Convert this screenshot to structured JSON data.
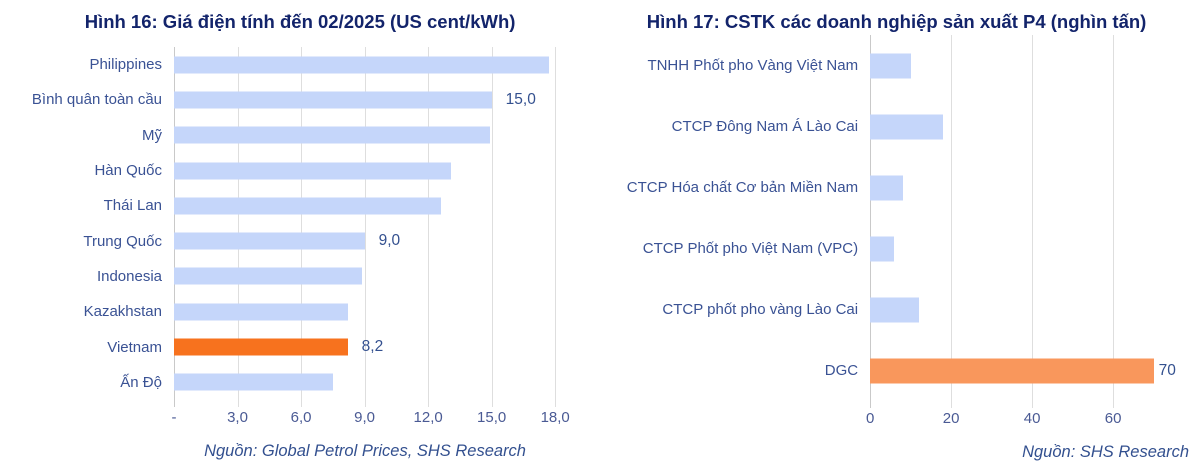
{
  "page": {
    "background": "#FFFFFF"
  },
  "colors": {
    "title_navy": "#13246B",
    "category_label": "#3A5294",
    "tick_label": "#4A5A94",
    "data_label": "#33508F",
    "source_text": "#33508F",
    "gridline": "#DEDEDE",
    "bar_blue": "#C5D6FA",
    "bar_orange_strong": "#F7721E",
    "bar_orange_light": "#F9975C"
  },
  "chart_data": [
    {
      "id": "fig16",
      "type": "bar",
      "orientation": "horizontal",
      "title": "Hình 16: Giá điện tính đến 02/2025 (US cent/kWh)",
      "categories": [
        "Philippines",
        "Bình quân toàn cầu",
        "Mỹ",
        "Hàn Quốc",
        "Thái Lan",
        "Trung Quốc",
        "Indonesia",
        "Kazakhstan",
        "Vietnam",
        "Ấn Độ"
      ],
      "values": [
        17.7,
        15.0,
        14.9,
        13.1,
        12.6,
        9.0,
        8.9,
        8.2,
        8.2,
        7.5
      ],
      "data_labels": {
        "1": "15,0",
        "5": "9,0",
        "8": "8,2"
      },
      "highlight_index": 8,
      "bar_color": "#C5D6FA",
      "highlight_color": "#F7721E",
      "xlim": [
        0,
        18.7
      ],
      "xticks": [
        0,
        3,
        6,
        9,
        12,
        15,
        18
      ],
      "xtick_labels": [
        "-",
        "3,0",
        "6,0",
        "9,0",
        "12,0",
        "15,0",
        "18,0"
      ],
      "grid": true,
      "legend": false,
      "source": "Nguồn: Global Petrol Prices, SHS Research"
    },
    {
      "id": "fig17",
      "type": "bar",
      "orientation": "horizontal",
      "title": "Hình 17: CSTK các doanh nghiệp sản xuất P4 (nghìn tấn)",
      "categories": [
        "TNHH Phốt pho Vàng Việt Nam",
        "CTCP Đông Nam Á Lào Cai",
        "CTCP Hóa chất Cơ bản Miền Nam",
        "CTCP Phốt pho Việt Nam (VPC)",
        "CTCP phốt pho vàng Lào Cai",
        "DGC"
      ],
      "values": [
        10,
        18,
        8,
        6,
        12,
        70
      ],
      "data_labels": {
        "5": "70"
      },
      "highlight_index": 5,
      "bar_color": "#C5D6FA",
      "highlight_color": "#F9975C",
      "xlim": [
        0,
        79
      ],
      "xticks": [
        0,
        20,
        40,
        60
      ],
      "xtick_labels": [
        "0",
        "20",
        "40",
        "60"
      ],
      "grid": true,
      "legend": false,
      "source": "Nguồn: SHS Research"
    }
  ]
}
